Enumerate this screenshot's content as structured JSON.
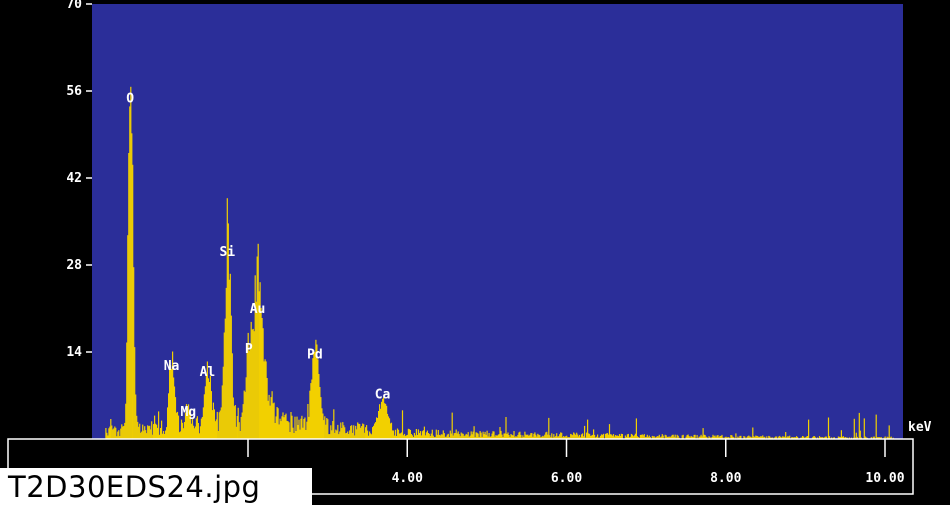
{
  "filename": "T2D30EDS24.jpg",
  "colors": {
    "plot_background": "#2b2e99",
    "spectrum": "#f2d000",
    "frame": "#000000",
    "axis_strip": "#000000",
    "text": "#ffffff"
  },
  "chart_data": {
    "type": "bar",
    "xlabel": "",
    "ylabel": "",
    "x_unit_label": "keV",
    "xlim": [
      0.0,
      10.5
    ],
    "ylim": [
      0,
      70
    ],
    "y_ticks": [
      {
        "value": 14,
        "label": "14"
      },
      {
        "value": 28,
        "label": "28"
      },
      {
        "value": 42,
        "label": "42"
      },
      {
        "value": 56,
        "label": "56"
      },
      {
        "value": 70,
        "label": "70"
      }
    ],
    "x_ticks": [
      {
        "value": 2.0,
        "label": ""
      },
      {
        "value": 4.0,
        "label": "4.00"
      },
      {
        "value": 6.0,
        "label": "6.00"
      },
      {
        "value": 8.0,
        "label": "8.00"
      },
      {
        "value": 10.0,
        "label": "10.00"
      }
    ],
    "peaks": [
      {
        "label": "O",
        "energy_kev": 0.52,
        "counts": 62
      },
      {
        "label": "Na",
        "energy_kev": 1.04,
        "counts": 11
      },
      {
        "label": "Mg",
        "energy_kev": 1.25,
        "counts": 3
      },
      {
        "label": "Al",
        "energy_kev": 1.49,
        "counts": 10
      },
      {
        "label": "Si",
        "energy_kev": 1.74,
        "counts": 31
      },
      {
        "label": "P",
        "energy_kev": 2.01,
        "counts": 14
      },
      {
        "label": "Au",
        "energy_kev": 2.12,
        "counts": 21
      },
      {
        "label": "Pd",
        "energy_kev": 2.84,
        "counts": 13
      },
      {
        "label": "Ca",
        "energy_kev": 3.69,
        "counts": 6
      }
    ]
  }
}
